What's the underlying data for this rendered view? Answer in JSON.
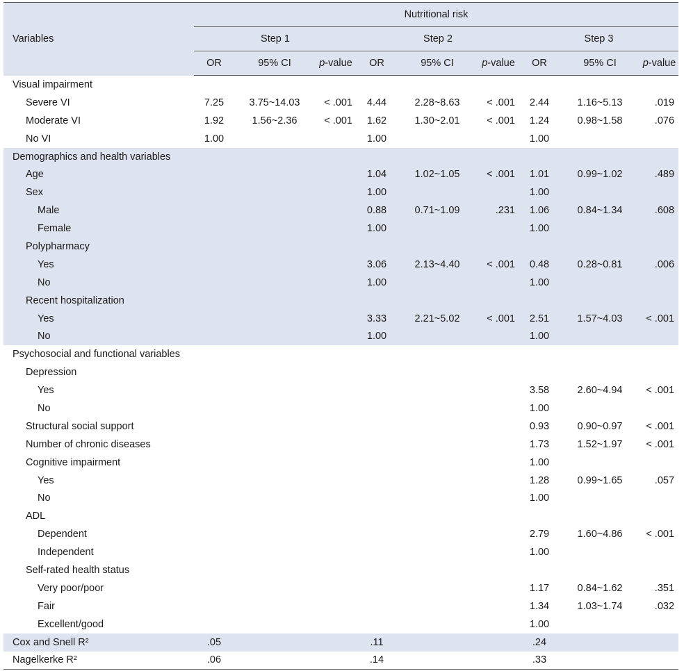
{
  "header": {
    "variables": "Variables",
    "group": "Nutritional risk",
    "steps": [
      "Step 1",
      "Step 2",
      "Step 3"
    ],
    "or": "OR",
    "ci": "95% CI",
    "p_italic": "p",
    "p_rest": "-value"
  },
  "rows": [
    {
      "label": "Visual impairment",
      "indent": 0,
      "shade": false,
      "cells": [
        "",
        "",
        "",
        "",
        "",
        "",
        "",
        "",
        ""
      ]
    },
    {
      "label": "Severe VI",
      "indent": 1,
      "shade": false,
      "cells": [
        "7.25",
        "3.75~14.03",
        "< .001",
        "4.44",
        "2.28~8.63",
        "< .001",
        "2.44",
        "1.16~5.13",
        ".019"
      ]
    },
    {
      "label": "Moderate VI",
      "indent": 1,
      "shade": false,
      "cells": [
        "1.92",
        "1.56~2.36",
        "< .001",
        "1.62",
        "1.30~2.01",
        "< .001",
        "1.24",
        "0.98~1.58",
        ".076"
      ]
    },
    {
      "label": "No VI",
      "indent": 1,
      "shade": false,
      "cells": [
        "1.00",
        "",
        "",
        "1.00",
        "",
        "",
        "1.00",
        "",
        ""
      ]
    },
    {
      "label": "Demographics and health variables",
      "indent": 0,
      "shade": true,
      "cells": [
        "",
        "",
        "",
        "",
        "",
        "",
        "",
        "",
        ""
      ]
    },
    {
      "label": "Age",
      "indent": 1,
      "shade": true,
      "cells": [
        "",
        "",
        "",
        "1.04",
        "1.02~1.05",
        "< .001",
        "1.01",
        "0.99~1.02",
        ".489"
      ]
    },
    {
      "label": "Sex",
      "indent": 1,
      "shade": true,
      "cells": [
        "",
        "",
        "",
        "1.00",
        "",
        "",
        "1.00",
        "",
        ""
      ]
    },
    {
      "label": "Male",
      "indent": 2,
      "shade": true,
      "cells": [
        "",
        "",
        "",
        "0.88",
        "0.71~1.09",
        ".231",
        "1.06",
        "0.84~1.34",
        ".608"
      ]
    },
    {
      "label": "Female",
      "indent": 2,
      "shade": true,
      "cells": [
        "",
        "",
        "",
        "1.00",
        "",
        "",
        "1.00",
        "",
        ""
      ]
    },
    {
      "label": "Polypharmacy",
      "indent": 1,
      "shade": true,
      "cells": [
        "",
        "",
        "",
        "",
        "",
        "",
        "",
        "",
        ""
      ]
    },
    {
      "label": "Yes",
      "indent": 2,
      "shade": true,
      "cells": [
        "",
        "",
        "",
        "3.06",
        "2.13~4.40",
        "< .001",
        "0.48",
        "0.28~0.81",
        ".006"
      ]
    },
    {
      "label": "No",
      "indent": 2,
      "shade": true,
      "cells": [
        "",
        "",
        "",
        "1.00",
        "",
        "",
        "1.00",
        "",
        ""
      ]
    },
    {
      "label": "Recent hospitalization",
      "indent": 1,
      "shade": true,
      "cells": [
        "",
        "",
        "",
        "",
        "",
        "",
        "",
        "",
        ""
      ]
    },
    {
      "label": "Yes",
      "indent": 2,
      "shade": true,
      "cells": [
        "",
        "",
        "",
        "3.33",
        "2.21~5.02",
        "< .001",
        "2.51",
        "1.57~4.03",
        "< .001"
      ]
    },
    {
      "label": "No",
      "indent": 2,
      "shade": true,
      "cells": [
        "",
        "",
        "",
        "1.00",
        "",
        "",
        "1.00",
        "",
        ""
      ]
    },
    {
      "label": "Psychosocial and functional variables",
      "indent": 0,
      "shade": false,
      "cells": [
        "",
        "",
        "",
        "",
        "",
        "",
        "",
        "",
        ""
      ]
    },
    {
      "label": "Depression",
      "indent": 1,
      "shade": false,
      "cells": [
        "",
        "",
        "",
        "",
        "",
        "",
        "",
        "",
        ""
      ]
    },
    {
      "label": "Yes",
      "indent": 2,
      "shade": false,
      "cells": [
        "",
        "",
        "",
        "",
        "",
        "",
        "3.58",
        "2.60~4.94",
        "< .001"
      ]
    },
    {
      "label": "No",
      "indent": 2,
      "shade": false,
      "cells": [
        "",
        "",
        "",
        "",
        "",
        "",
        "1.00",
        "",
        ""
      ]
    },
    {
      "label": "Structural social support",
      "indent": 1,
      "shade": false,
      "cells": [
        "",
        "",
        "",
        "",
        "",
        "",
        "0.93",
        "0.90~0.97",
        "< .001"
      ]
    },
    {
      "label": "Number of chronic diseases",
      "indent": 1,
      "shade": false,
      "cells": [
        "",
        "",
        "",
        "",
        "",
        "",
        "1.73",
        "1.52~1.97",
        "< .001"
      ]
    },
    {
      "label": "Cognitive impairment",
      "indent": 1,
      "shade": false,
      "cells": [
        "",
        "",
        "",
        "",
        "",
        "",
        "1.00",
        "",
        ""
      ]
    },
    {
      "label": "Yes",
      "indent": 2,
      "shade": false,
      "cells": [
        "",
        "",
        "",
        "",
        "",
        "",
        "1.28",
        "0.99~1.65",
        ".057"
      ]
    },
    {
      "label": "No",
      "indent": 2,
      "shade": false,
      "cells": [
        "",
        "",
        "",
        "",
        "",
        "",
        "1.00",
        "",
        ""
      ]
    },
    {
      "label": "ADL",
      "indent": 1,
      "shade": false,
      "cells": [
        "",
        "",
        "",
        "",
        "",
        "",
        "",
        "",
        ""
      ]
    },
    {
      "label": "Dependent",
      "indent": 2,
      "shade": false,
      "cells": [
        "",
        "",
        "",
        "",
        "",
        "",
        "2.79",
        "1.60~4.86",
        "< .001"
      ]
    },
    {
      "label": "Independent",
      "indent": 2,
      "shade": false,
      "cells": [
        "",
        "",
        "",
        "",
        "",
        "",
        "1.00",
        "",
        ""
      ]
    },
    {
      "label": "Self-rated health status",
      "indent": 1,
      "shade": false,
      "cells": [
        "",
        "",
        "",
        "",
        "",
        "",
        "",
        "",
        ""
      ]
    },
    {
      "label": "Very poor/poor",
      "indent": 2,
      "shade": false,
      "cells": [
        "",
        "",
        "",
        "",
        "",
        "",
        "1.17",
        "0.84~1.62",
        ".351"
      ]
    },
    {
      "label": "Fair",
      "indent": 2,
      "shade": false,
      "cells": [
        "",
        "",
        "",
        "",
        "",
        "",
        "1.34",
        "1.03~1.74",
        ".032"
      ]
    },
    {
      "label": "Excellent/good",
      "indent": 2,
      "shade": false,
      "cells": [
        "",
        "",
        "",
        "",
        "",
        "",
        "1.00",
        "",
        ""
      ]
    },
    {
      "label": "Cox and Snell R²",
      "indent": 0,
      "shade": true,
      "cells": [
        ".05",
        "",
        "",
        ".11",
        "",
        "",
        ".24",
        "",
        ""
      ]
    },
    {
      "label": "Nagelkerke R²",
      "indent": 0,
      "shade": false,
      "cells": [
        ".06",
        "",
        "",
        ".14",
        "",
        "",
        ".33",
        "",
        ""
      ]
    }
  ]
}
